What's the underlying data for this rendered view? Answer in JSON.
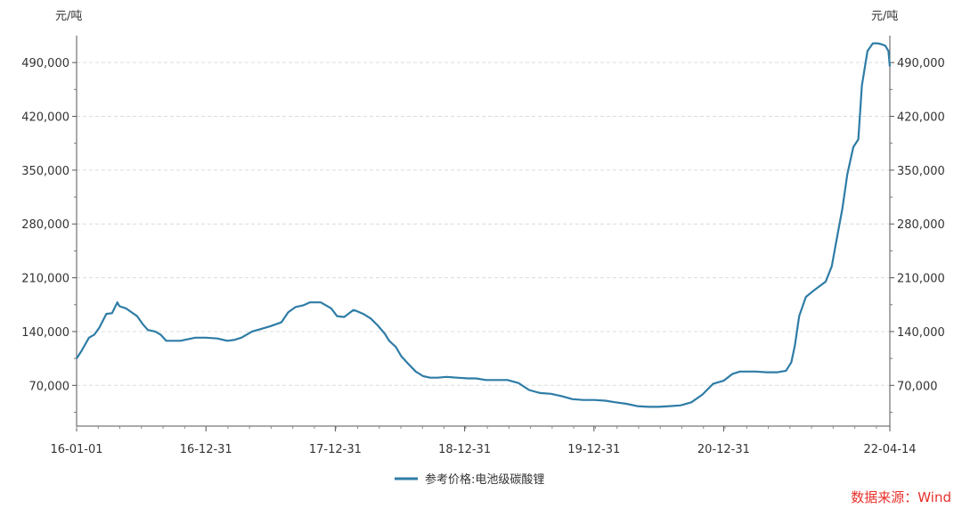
{
  "chart_data": {
    "type": "line",
    "unit_left": "元/吨",
    "unit_right": "元/吨",
    "ylim": [
      17000,
      525000
    ],
    "y_ticks": [
      70000,
      140000,
      210000,
      280000,
      350000,
      420000,
      490000
    ],
    "y_tick_labels": [
      "70,000",
      "140,000",
      "210,000",
      "280,000",
      "350,000",
      "420,000",
      "490,000"
    ],
    "x_tick_labels": [
      "16-01-01",
      "16-12-31",
      "17-12-31",
      "18-12-31",
      "19-12-31",
      "20-12-31",
      "22-04-14"
    ],
    "x_range": [
      "2016-01-01",
      "2022-04-14"
    ],
    "grid": "horizontal dashed",
    "legend_position": "bottom-center",
    "series": [
      {
        "name": "参考价格:电池级碳酸锂",
        "color": "#2e7ca6",
        "x": [
          "2016-01-01",
          "2016-01-15",
          "2016-02-05",
          "2016-02-20",
          "2016-03-05",
          "2016-03-25",
          "2016-04-10",
          "2016-04-25",
          "2016-05-01",
          "2016-05-20",
          "2016-06-01",
          "2016-06-20",
          "2016-07-05",
          "2016-07-20",
          "2016-08-10",
          "2016-08-25",
          "2016-09-10",
          "2016-10-01",
          "2016-10-20",
          "2016-11-10",
          "2016-12-01",
          "2016-12-31",
          "2017-02-01",
          "2017-03-01",
          "2017-03-20",
          "2017-04-10",
          "2017-05-10",
          "2017-06-01",
          "2017-07-01",
          "2017-08-01",
          "2017-08-20",
          "2017-09-10",
          "2017-10-01",
          "2017-10-20",
          "2017-11-20",
          "2017-12-20",
          "2018-01-05",
          "2018-01-25",
          "2018-02-20",
          "2018-02-28",
          "2018-03-20",
          "2018-04-10",
          "2018-04-30",
          "2018-05-20",
          "2018-06-01",
          "2018-06-20",
          "2018-07-05",
          "2018-07-25",
          "2018-08-15",
          "2018-09-05",
          "2018-09-25",
          "2018-10-15",
          "2018-11-10",
          "2018-12-10",
          "2019-01-10",
          "2019-02-01",
          "2019-03-01",
          "2019-04-01",
          "2019-05-01",
          "2019-06-01",
          "2019-07-01",
          "2019-08-01",
          "2019-09-01",
          "2019-10-01",
          "2019-11-01",
          "2019-12-01",
          "2020-01-01",
          "2020-02-01",
          "2020-03-01",
          "2020-04-01",
          "2020-05-01",
          "2020-06-01",
          "2020-07-01",
          "2020-08-01",
          "2020-09-01",
          "2020-10-01",
          "2020-11-01",
          "2020-12-01",
          "2020-12-31",
          "2021-01-25",
          "2021-02-15",
          "2021-03-10",
          "2021-04-01",
          "2021-05-01",
          "2021-06-01",
          "2021-06-25",
          "2021-07-10",
          "2021-07-20",
          "2021-08-01",
          "2021-08-20",
          "2021-09-10",
          "2021-09-25",
          "2021-10-15",
          "2021-11-01",
          "2021-11-15",
          "2021-12-01",
          "2021-12-15",
          "2022-01-01",
          "2022-01-15",
          "2022-01-25",
          "2022-02-10",
          "2022-02-25",
          "2022-03-10",
          "2022-03-20",
          "2022-04-01",
          "2022-04-10",
          "2022-04-14"
        ],
        "values": [
          105000,
          115000,
          132000,
          136000,
          145000,
          163000,
          164000,
          178000,
          173000,
          170000,
          166000,
          160000,
          150000,
          142000,
          140000,
          136000,
          128000,
          128000,
          128000,
          130000,
          132000,
          132000,
          131000,
          128000,
          129000,
          132000,
          140000,
          143000,
          147000,
          152000,
          165000,
          172000,
          174000,
          178000,
          178000,
          170000,
          160000,
          159000,
          168000,
          167000,
          163000,
          157000,
          148000,
          137000,
          128000,
          120000,
          108000,
          98000,
          88000,
          82000,
          80000,
          80000,
          81000,
          80000,
          79000,
          79000,
          77000,
          77000,
          77000,
          73000,
          64000,
          60000,
          59000,
          56000,
          52000,
          51000,
          51000,
          50000,
          48000,
          46000,
          43000,
          42000,
          42000,
          43000,
          44000,
          48000,
          58000,
          72000,
          76000,
          85000,
          88000,
          88000,
          88000,
          87000,
          87000,
          89000,
          100000,
          122000,
          160000,
          185000,
          193000,
          198000,
          205000,
          225000,
          260000,
          300000,
          345000,
          380000,
          390000,
          460000,
          505000,
          515000,
          515000,
          514000,
          512000,
          505000,
          485000
        ]
      }
    ],
    "source": "数据来源：Wind"
  }
}
